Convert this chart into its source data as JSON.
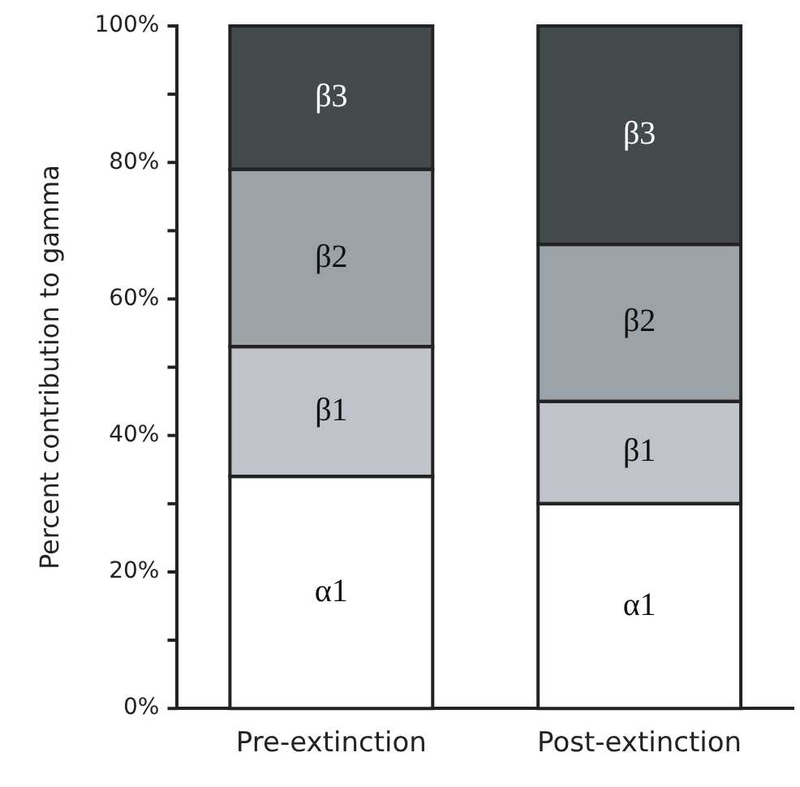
{
  "chart_data": {
    "type": "bar",
    "stacked": true,
    "ylabel": "Percent contribution to gamma",
    "categories": [
      "Pre-extinction",
      "Post-extinction"
    ],
    "series": [
      {
        "name": "α1",
        "color": "#ffffff",
        "values": [
          34,
          30
        ]
      },
      {
        "name": "β1",
        "color": "#c0c3c9",
        "values": [
          19,
          15
        ]
      },
      {
        "name": "β2",
        "color": "#9ca3a8",
        "values": [
          26,
          23
        ]
      },
      {
        "name": "β3",
        "color": "#434a4c",
        "values": [
          21,
          32
        ]
      }
    ],
    "ylim": [
      0,
      100
    ],
    "yticks": [
      {
        "value": 0,
        "label": "0%"
      },
      {
        "value": 10,
        "label": null
      },
      {
        "value": 20,
        "label": "20%"
      },
      {
        "value": 30,
        "label": null
      },
      {
        "value": 40,
        "label": "40%"
      },
      {
        "value": 50,
        "label": null
      },
      {
        "value": 60,
        "label": "60%"
      },
      {
        "value": 70,
        "label": null
      },
      {
        "value": 80,
        "label": "80%"
      },
      {
        "value": 90,
        "label": null
      },
      {
        "value": 100,
        "label": "100%"
      }
    ],
    "grid": false,
    "legend": false
  }
}
